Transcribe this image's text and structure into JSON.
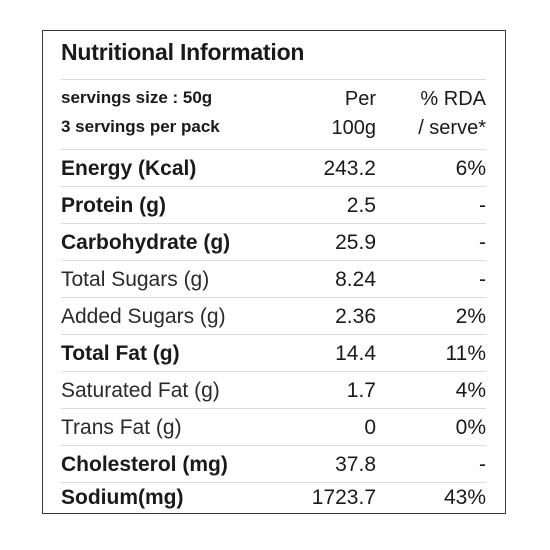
{
  "panel": {
    "title": "Nutritional Information",
    "header": {
      "serving_size": "servings size : 50g",
      "servings_per_pack": "3 servings per pack",
      "per_line1": "Per",
      "per_line2": "100g",
      "rda_line1": "% RDA",
      "rda_line2": "/ serve*"
    },
    "rows": [
      {
        "name": "Energy (Kcal)",
        "per": "243.2",
        "rda": "6%"
      },
      {
        "name": "Protein (g)",
        "per": "2.5",
        "rda": "-"
      },
      {
        "name": "Carbohydrate (g)",
        "per": "25.9",
        "rda": "-"
      },
      {
        "name": "Total Sugars (g)",
        "per": "8.24",
        "rda": "-"
      },
      {
        "name": "Added Sugars (g)",
        "per": "2.36",
        "rda": "2%"
      },
      {
        "name": "Total Fat (g)",
        "per": "14.4",
        "rda": "11%"
      },
      {
        "name": "Saturated Fat (g)",
        "per": "1.7",
        "rda": "4%"
      },
      {
        "name": "Trans Fat (g)",
        "per": "0",
        "rda": "0%"
      },
      {
        "name": "Cholesterol (mg)",
        "per": "37.8",
        "rda": "-"
      },
      {
        "name": "Sodium(mg)",
        "per": "1723.7",
        "rda": "43%"
      }
    ]
  }
}
